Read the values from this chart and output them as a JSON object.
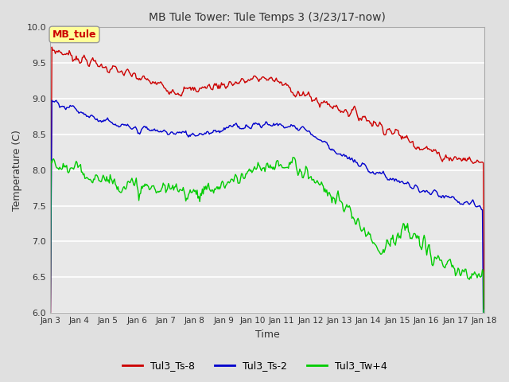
{
  "title": "MB Tule Tower: Tule Temps 3 (3/23/17-now)",
  "xlabel": "Time",
  "ylabel": "Temperature (C)",
  "ylim": [
    6.0,
    10.0
  ],
  "yticks": [
    6.0,
    6.5,
    7.0,
    7.5,
    8.0,
    8.5,
    9.0,
    9.5,
    10.0
  ],
  "fig_bg_color": "#e0e0e0",
  "plot_bg_color": "#e8e8e8",
  "series": {
    "Tul3_Ts-8": {
      "color": "#cc0000"
    },
    "Tul3_Ts-2": {
      "color": "#0000cc"
    },
    "Tul3_Tw+4": {
      "color": "#00cc00"
    }
  },
  "legend_box": {
    "label": "MB_tule",
    "bg": "#ffff99",
    "edge": "#999999"
  },
  "xtick_labels": [
    "Jan 3",
    "Jan 4",
    "Jan 5",
    "Jan 6",
    "Jan 7",
    "Jan 8",
    "Jan 9",
    "Jan 10",
    "Jan 11",
    "Jan 12",
    "Jan 13",
    "Jan 14",
    "Jan 15",
    "Jan 16",
    "Jan 17",
    "Jan 18"
  ],
  "n_points": 500
}
